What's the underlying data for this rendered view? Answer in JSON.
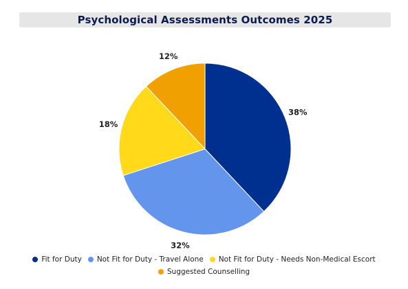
{
  "chart_data": {
    "type": "pie",
    "title": "Psychological Assessments Outcomes 2025",
    "categories": [
      "Fit for Duty",
      "Not Fit for Duty - Travel Alone",
      "Not Fit for Duty - Needs Non-Medical Escort",
      "Suggested Counselling"
    ],
    "values": [
      38,
      32,
      18,
      12
    ],
    "labels": [
      "38%",
      "32%",
      "18%",
      "12%"
    ],
    "colors": [
      "#00308f",
      "#6495ed",
      "#ffd91a",
      "#f0a000"
    ],
    "legend_position": "bottom"
  }
}
